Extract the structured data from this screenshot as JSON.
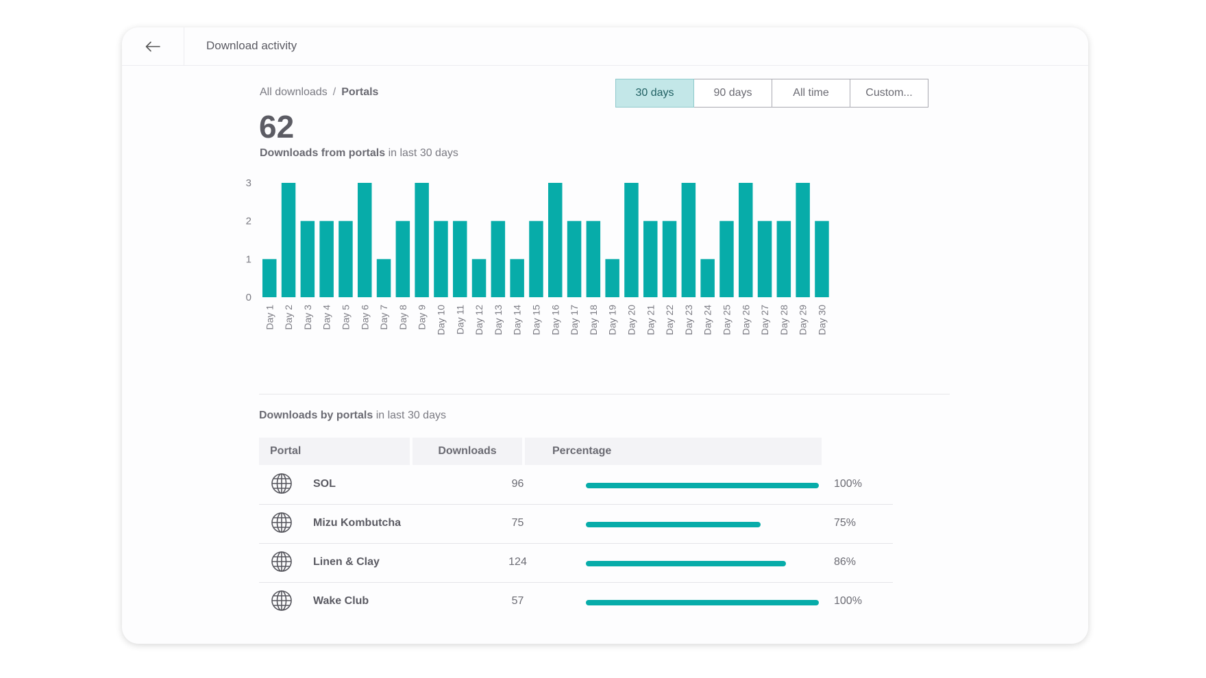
{
  "header": {
    "title": "Download activity"
  },
  "breadcrumb": {
    "root": "All downloads",
    "separator": "/",
    "current": "Portals"
  },
  "ranges": [
    {
      "label": "30 days",
      "active": true
    },
    {
      "label": "90 days",
      "active": false
    },
    {
      "label": "All time",
      "active": false
    },
    {
      "label": "Custom...",
      "active": false
    }
  ],
  "summary": {
    "total": "62",
    "caption_bold": "Downloads from portals",
    "caption_rest": " in last 30 days"
  },
  "chart_data": {
    "type": "bar",
    "title": "Downloads from portals in last 30 days",
    "categories": [
      "Day 1",
      "Day 2",
      "Day 3",
      "Day 4",
      "Day 5",
      "Day 6",
      "Day 7",
      "Day 8",
      "Day 9",
      "Day 10",
      "Day 11",
      "Day 12",
      "Day 13",
      "Day 14",
      "Day 15",
      "Day 16",
      "Day 17",
      "Day 18",
      "Day 19",
      "Day 20",
      "Day 21",
      "Day 22",
      "Day 23",
      "Day 24",
      "Day 25",
      "Day 26",
      "Day 27",
      "Day 28",
      "Day 29",
      "Day 30"
    ],
    "values": [
      1,
      3,
      2,
      2,
      2,
      3,
      1,
      2,
      3,
      2,
      2,
      1,
      2,
      1,
      2,
      3,
      2,
      2,
      1,
      3,
      2,
      2,
      3,
      1,
      2,
      3,
      2,
      2,
      3,
      2
    ],
    "yticks": [
      0,
      1,
      2,
      3
    ],
    "ylim": [
      0,
      3
    ],
    "xlabel": "",
    "ylabel": "",
    "color": "#07aca9"
  },
  "section": {
    "bold": "Downloads by portals",
    "rest": " in last 30 days"
  },
  "table": {
    "headers": {
      "portal": "Portal",
      "downloads": "Downloads",
      "percentage": "Percentage"
    },
    "rows": [
      {
        "portal": "SOL",
        "downloads": "96",
        "percent_label": "100%",
        "percent": 100
      },
      {
        "portal": "Mizu Kombutcha",
        "downloads": "75",
        "percent_label": "75%",
        "percent": 75
      },
      {
        "portal": "Linen & Clay",
        "downloads": "124",
        "percent_label": "86%",
        "percent": 86
      },
      {
        "portal": "Wake Club",
        "downloads": "57",
        "percent_label": "100%",
        "percent": 100
      }
    ]
  },
  "icons": {
    "back": "arrow-left-icon",
    "portal": "globe-icon"
  },
  "colors": {
    "accent": "#07aca9",
    "active_range_bg": "#c3e7e8"
  }
}
